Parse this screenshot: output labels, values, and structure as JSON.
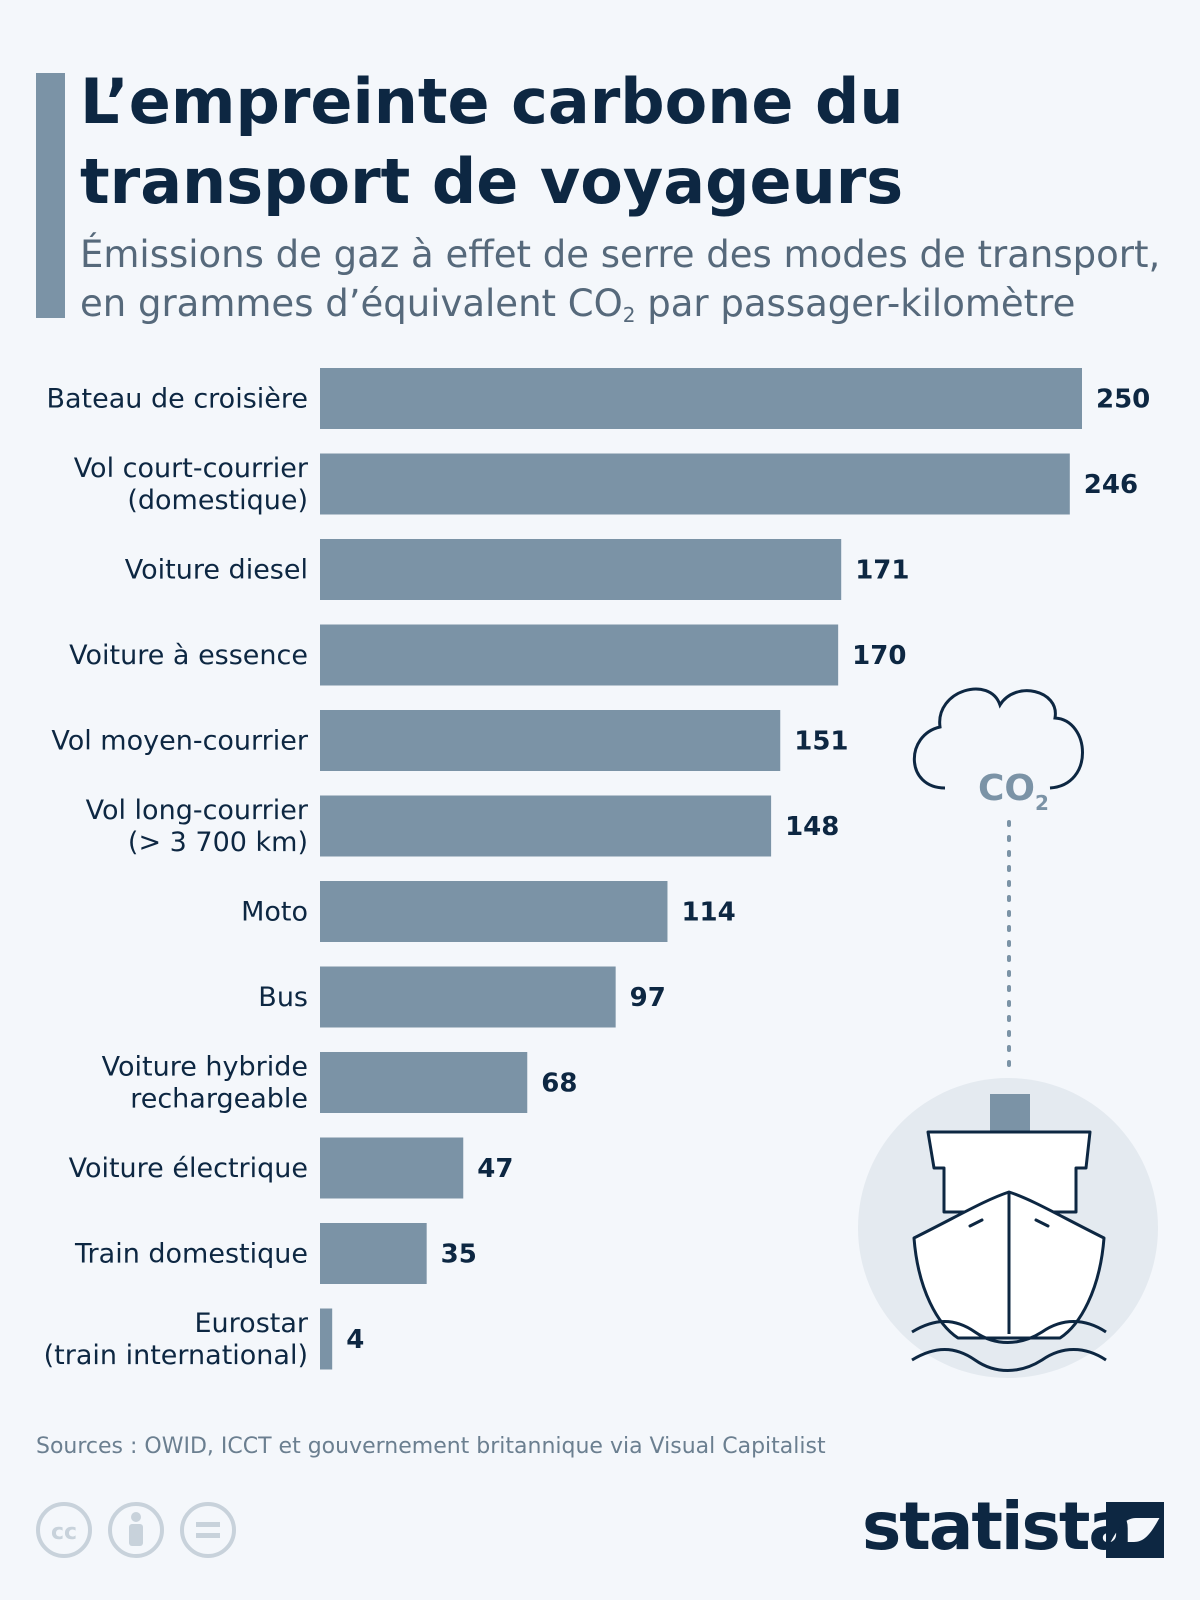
{
  "header": {
    "title_line1": "L’empreinte carbone du",
    "title_line2": "transport de voyageurs",
    "subtitle_line1": "Émissions de gaz à effet de serre des modes de transport,",
    "subtitle_line2_pre": "en grammes d’équivalent CO",
    "subtitle_line2_sub": "2",
    "subtitle_line2_post": " par passager-kilomètre"
  },
  "chart_data": {
    "type": "bar",
    "orientation": "horizontal",
    "categories": [
      [
        "Bateau de croisière"
      ],
      [
        "Vol court-courrier",
        "(domestique)"
      ],
      [
        "Voiture diesel"
      ],
      [
        "Voiture à essence"
      ],
      [
        "Vol moyen-courrier"
      ],
      [
        "Vol long-courrier",
        "(> 3 700 km)"
      ],
      [
        "Moto"
      ],
      [
        "Bus"
      ],
      [
        "Voiture hybride",
        "rechargeable"
      ],
      [
        "Voiture électrique"
      ],
      [
        "Train domestique"
      ],
      [
        "Eurostar",
        "(train international)"
      ]
    ],
    "values": [
      250,
      246,
      171,
      170,
      151,
      148,
      114,
      97,
      68,
      47,
      35,
      4
    ],
    "xlim": [
      0,
      250
    ],
    "bar_color": "#7b93a6",
    "grid": false,
    "legend": "none"
  },
  "illustration": {
    "cloud_text": "CO",
    "cloud_sub": "2",
    "icon": "cruise-ship-icon"
  },
  "footer": {
    "source": "Sources : OWID, ICCT et gouvernement britannique via Visual Capitalist",
    "brand": "statista",
    "license_icons": [
      "cc-icon",
      "attribution-icon",
      "no-derivatives-icon"
    ]
  },
  "colors": {
    "background": "#f4f7fb",
    "title": "#0d2742",
    "subtitle": "#56697b",
    "bar": "#7b93a6"
  }
}
